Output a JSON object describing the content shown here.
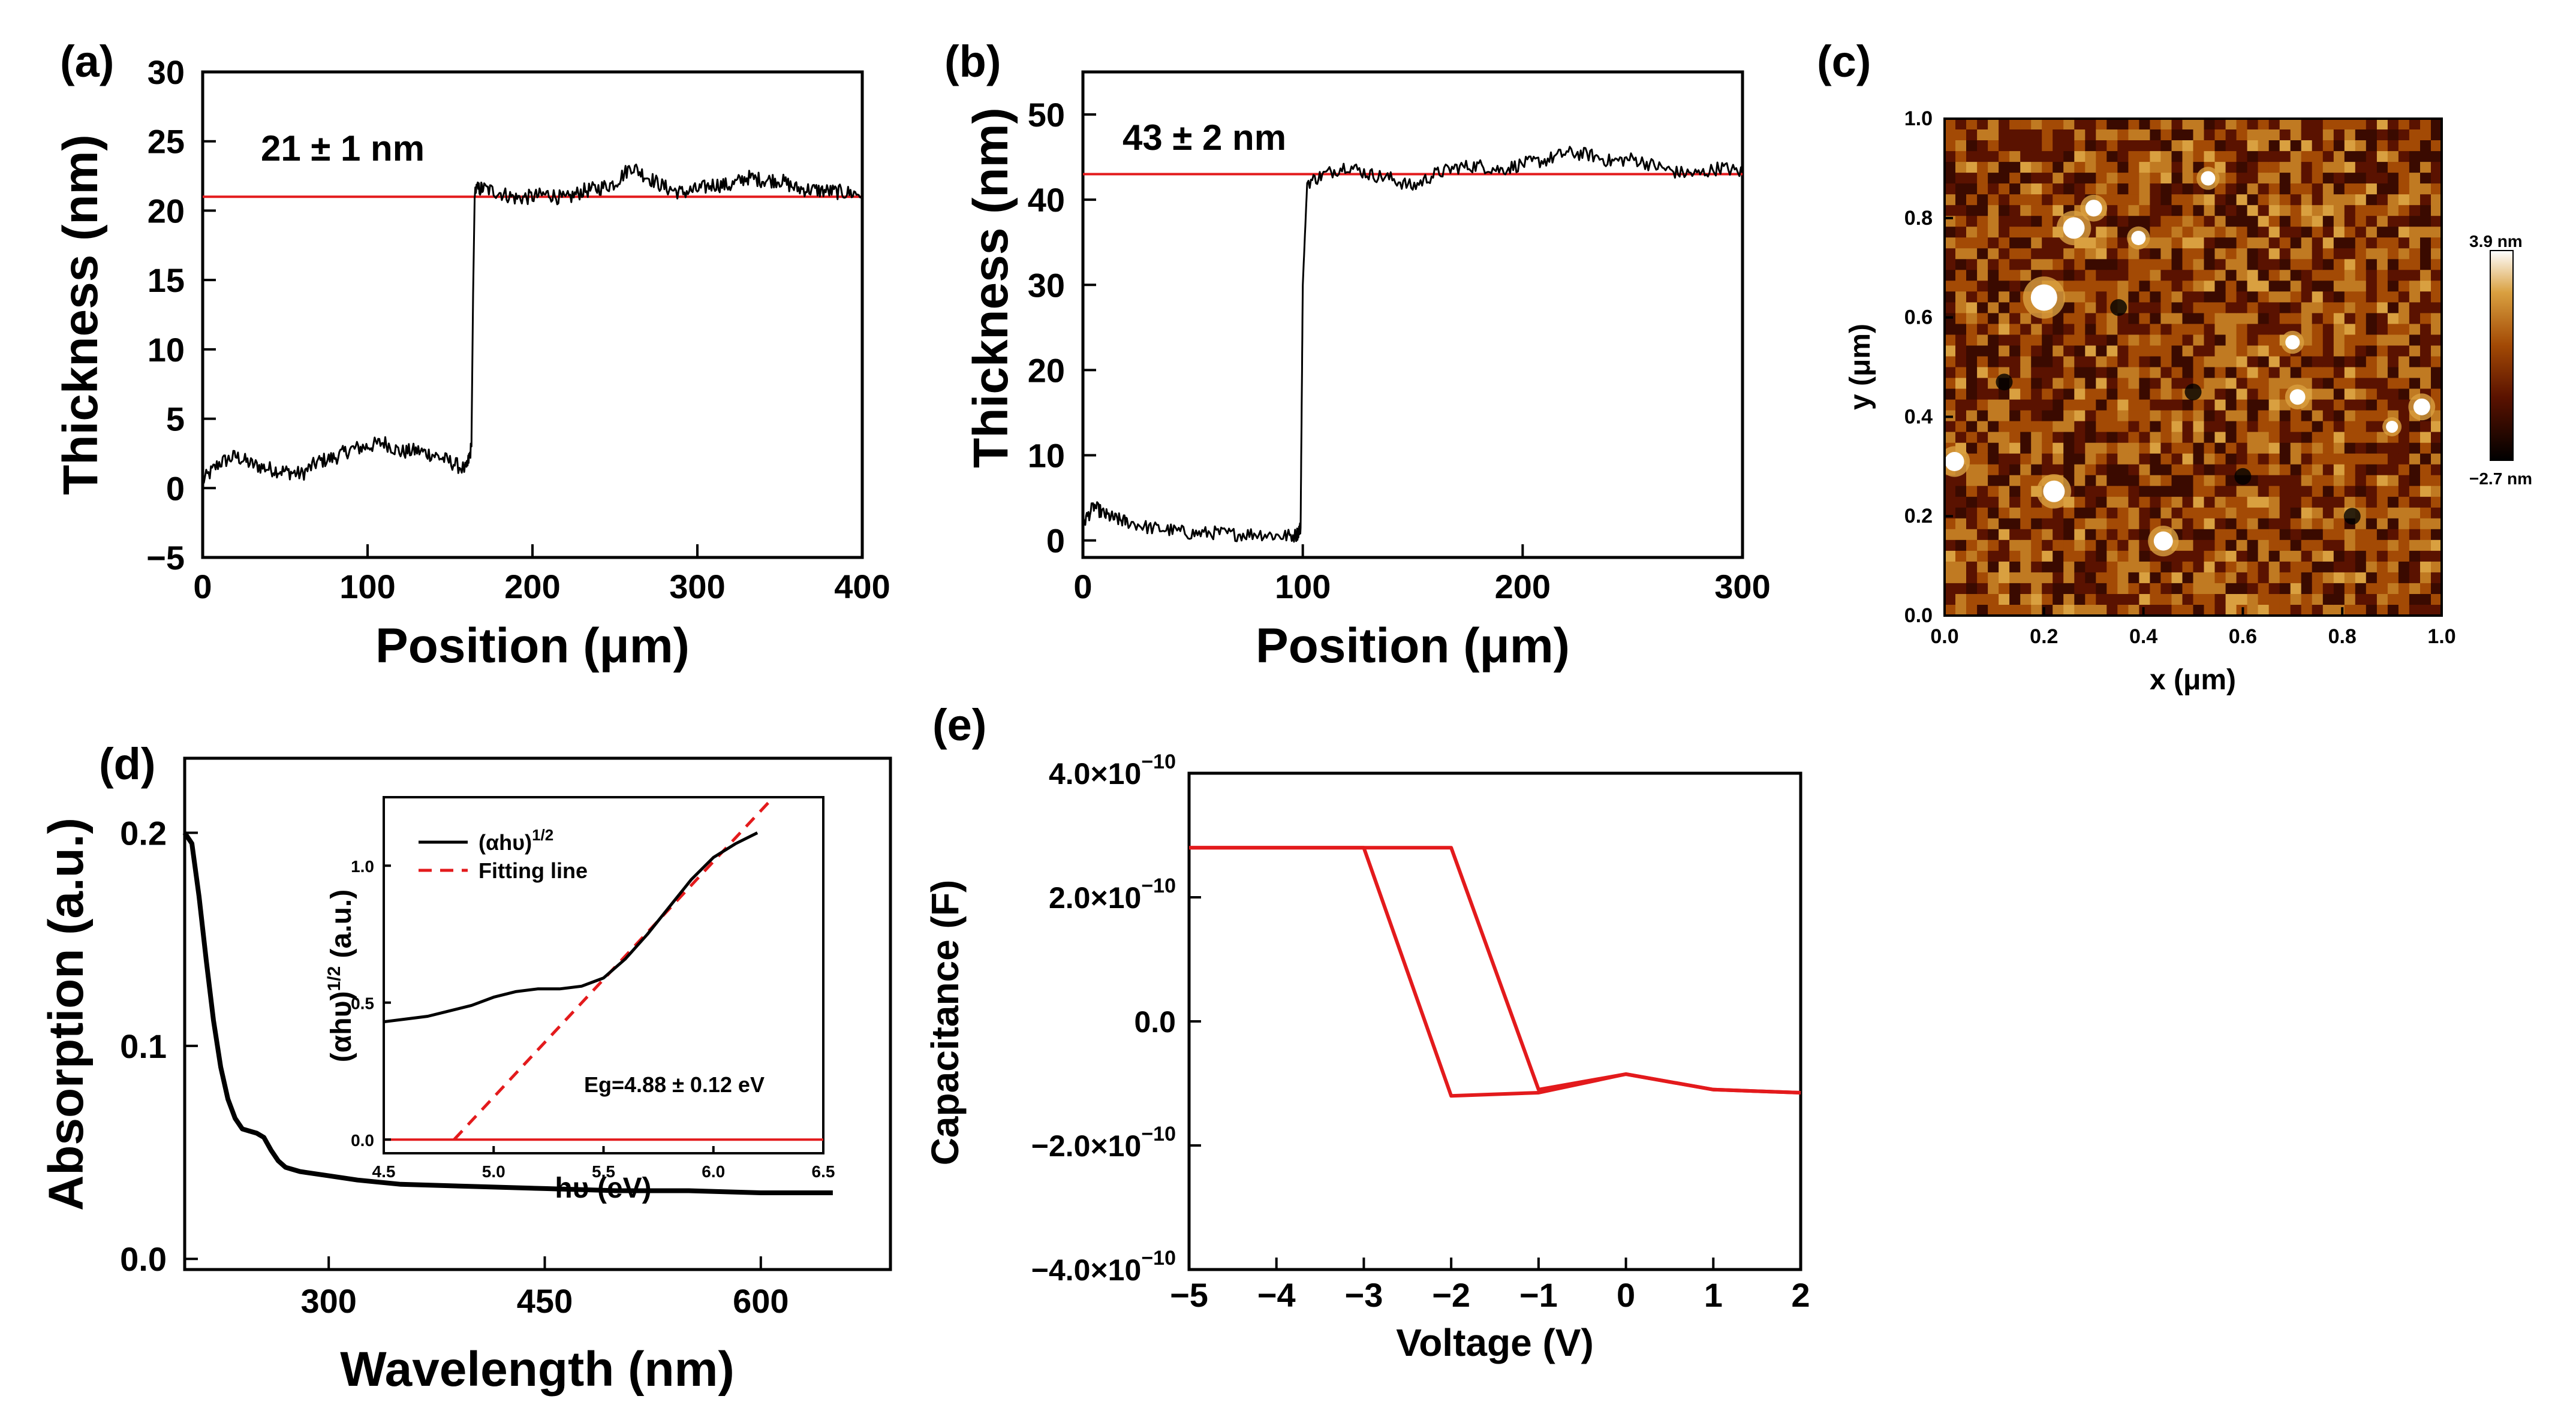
{
  "panels": {
    "a": {
      "label": "(a)"
    },
    "b": {
      "label": "(b)"
    },
    "c": {
      "label": "(c)"
    },
    "d": {
      "label": "(d)"
    },
    "e": {
      "label": "(e)"
    }
  },
  "chart_data": [
    {
      "id": "a",
      "type": "line",
      "xlabel": "Position (μm)",
      "ylabel": "Thickness (nm)",
      "xlim": [
        0,
        400
      ],
      "ylim": [
        -5,
        30
      ],
      "xticks": [
        "0",
        "100",
        "200",
        "300",
        "400"
      ],
      "yticks": [
        "−5",
        "0",
        "5",
        "10",
        "15",
        "20",
        "25",
        "30"
      ],
      "annotation": "21 ± 1 nm",
      "series": [
        {
          "values_x": [
            0,
            10,
            20,
            30,
            40,
            50,
            60,
            70,
            80,
            90,
            100,
            110,
            120,
            130,
            140,
            150,
            160,
            163,
            164,
            165,
            170,
            180,
            190,
            200,
            210,
            220,
            230,
            240,
            250,
            260,
            270,
            280,
            290,
            300,
            310,
            320,
            330,
            340,
            350,
            360,
            370,
            380,
            390,
            400
          ],
          "values_y": [
            0.5,
            1.8,
            2.3,
            1.7,
            1.4,
            1.2,
            1.0,
            1.9,
            2.2,
            2.8,
            3.0,
            3.3,
            2.6,
            2.7,
            2.4,
            1.9,
            1.3,
            3.0,
            14.0,
            21.5,
            21.6,
            21.3,
            20.9,
            21.0,
            21.2,
            20.8,
            21.4,
            21.6,
            22.0,
            23.2,
            22.4,
            21.7,
            21.3,
            21.5,
            21.9,
            21.8,
            22.4,
            22.2,
            22.2,
            21.6,
            21.5,
            21.4,
            21.3,
            21.2
          ]
        },
        {
          "values_x": [
            0,
            400
          ],
          "values_y": [
            21,
            21
          ]
        }
      ],
      "colors": [
        "#000000",
        "#e31a1c"
      ]
    },
    {
      "id": "b",
      "type": "line",
      "xlabel": "Position (μm)",
      "ylabel": "Thickness (nm)",
      "xlim": [
        0,
        300
      ],
      "ylim": [
        -2,
        55
      ],
      "xticks": [
        "0",
        "100",
        "200",
        "300"
      ],
      "yticks": [
        "0",
        "10",
        "20",
        "30",
        "40",
        "50"
      ],
      "annotation": "43 ± 2 nm",
      "series": [
        {
          "values_x": [
            0,
            5,
            10,
            15,
            20,
            30,
            40,
            50,
            60,
            70,
            80,
            90,
            97,
            99,
            100,
            102,
            110,
            120,
            130,
            140,
            150,
            160,
            170,
            180,
            190,
            200,
            210,
            220,
            230,
            240,
            250,
            260,
            270,
            280,
            290,
            300
          ],
          "values_y": [
            2.0,
            4.0,
            3.0,
            2.5,
            2.2,
            1.5,
            1.2,
            0.8,
            0.9,
            0.7,
            0.8,
            0.5,
            0.6,
            1.5,
            30.0,
            42.0,
            43.0,
            44.0,
            43.0,
            42.5,
            41.5,
            43.0,
            43.8,
            44.0,
            43.5,
            44.2,
            44.6,
            45.5,
            45.3,
            44.5,
            44.8,
            44.0,
            43.2,
            43.0,
            43.8,
            43.2
          ]
        },
        {
          "values_x": [
            0,
            300
          ],
          "values_y": [
            43,
            43
          ]
        }
      ],
      "colors": [
        "#000000",
        "#e31a1c"
      ]
    },
    {
      "id": "c",
      "type": "heatmap",
      "xlabel": "x (μm)",
      "ylabel": "y (μm)",
      "xlim": [
        0.0,
        1.0
      ],
      "ylim": [
        0.0,
        1.0
      ],
      "xticks": [
        "0.0",
        "0.2",
        "0.4",
        "0.6",
        "0.8",
        "1.0"
      ],
      "yticks": [
        "0.0",
        "0.2",
        "0.4",
        "0.6",
        "0.8",
        "1.0"
      ],
      "colorbar_max": "3.9 nm",
      "colorbar_min": "−2.7 nm",
      "colors": [
        "#000000",
        "#5a1200",
        "#a34a05",
        "#d9a040",
        "#ffffff"
      ]
    },
    {
      "id": "d",
      "type": "line",
      "xlabel": "Wavelength (nm)",
      "ylabel": "Absorption (a.u.)",
      "xlim": [
        200,
        690
      ],
      "ylim": [
        -0.005,
        0.235
      ],
      "xticks": [
        "300",
        "450",
        "600"
      ],
      "yticks": [
        "0.0",
        "0.1",
        "0.2"
      ],
      "series": [
        {
          "values_x": [
            200,
            205,
            210,
            215,
            220,
            225,
            230,
            235,
            240,
            245,
            250,
            255,
            260,
            265,
            270,
            275,
            280,
            290,
            300,
            320,
            350,
            400,
            450,
            500,
            550,
            600,
            650
          ],
          "values_y": [
            0.2,
            0.195,
            0.17,
            0.14,
            0.112,
            0.09,
            0.075,
            0.066,
            0.061,
            0.06,
            0.059,
            0.057,
            0.051,
            0.046,
            0.043,
            0.042,
            0.041,
            0.04,
            0.039,
            0.037,
            0.035,
            0.034,
            0.033,
            0.032,
            0.032,
            0.031,
            0.031
          ]
        }
      ],
      "colors": [
        "#000000"
      ]
    },
    {
      "id": "d-inset",
      "type": "line",
      "xlabel": "hυ (eV)",
      "ylabel": "(αhυ)1/2 (a.u.)",
      "xlim": [
        4.5,
        6.5
      ],
      "ylim": [
        -0.05,
        1.25
      ],
      "xticks": [
        "4.5",
        "5.0",
        "5.5",
        "6.0",
        "6.5"
      ],
      "yticks": [
        "0.0",
        "0.5",
        "1.0"
      ],
      "annotation": "Eg=4.88 ± 0.12 eV",
      "legend": [
        "(αhυ)1/2",
        "Fitting line"
      ],
      "series": [
        {
          "name": "(αhυ)1/2",
          "values_x": [
            4.5,
            4.6,
            4.7,
            4.8,
            4.9,
            5.0,
            5.1,
            5.2,
            5.3,
            5.4,
            5.5,
            5.6,
            5.7,
            5.8,
            5.9,
            6.0,
            6.1,
            6.2
          ],
          "values_y": [
            0.43,
            0.44,
            0.45,
            0.47,
            0.49,
            0.52,
            0.54,
            0.55,
            0.55,
            0.56,
            0.59,
            0.66,
            0.75,
            0.85,
            0.95,
            1.03,
            1.08,
            1.12
          ]
        },
        {
          "name": "Fitting line",
          "values_x": [
            4.82,
            6.25
          ],
          "values_y": [
            0.0,
            1.23
          ]
        },
        {
          "values_x": [
            4.5,
            6.5
          ],
          "values_y": [
            0.0,
            0.0
          ]
        }
      ],
      "colors": [
        "#000000",
        "#e31a1c",
        "#e31a1c"
      ]
    },
    {
      "id": "e",
      "type": "line",
      "xlabel": "Voltage (V)",
      "ylabel": "Capacitance (F)",
      "xlim": [
        -5,
        2
      ],
      "ylim": [
        -4e-10,
        4e-10
      ],
      "xticks": [
        "−5",
        "−4",
        "−3",
        "−2",
        "−1",
        "0",
        "1",
        "2"
      ],
      "yticks": [
        {
          "mant": "−4.0",
          "exp": "−10"
        },
        {
          "mant": "−2.0",
          "exp": "−10"
        },
        {
          "mant": "0.0",
          "exp": ""
        },
        {
          "mant": "2.0",
          "exp": "−10"
        },
        {
          "mant": "4.0",
          "exp": "−10"
        }
      ],
      "series": [
        {
          "values_x": [
            -5,
            -2,
            -1,
            0,
            1,
            2
          ],
          "values_y": [
            2.8e-10,
            2.8e-10,
            -1.1e-10,
            -8.5e-11,
            -1.1e-10,
            -1.15e-10
          ]
        },
        {
          "values_x": [
            -5,
            -3,
            -2,
            -1,
            0,
            1,
            2
          ],
          "values_y": [
            2.8e-10,
            2.8e-10,
            -1.2e-10,
            -1.15e-10,
            -8.5e-11,
            -1.1e-10,
            -1.15e-10
          ]
        }
      ],
      "colors": [
        "#e31a1c",
        "#e31a1c"
      ]
    }
  ]
}
